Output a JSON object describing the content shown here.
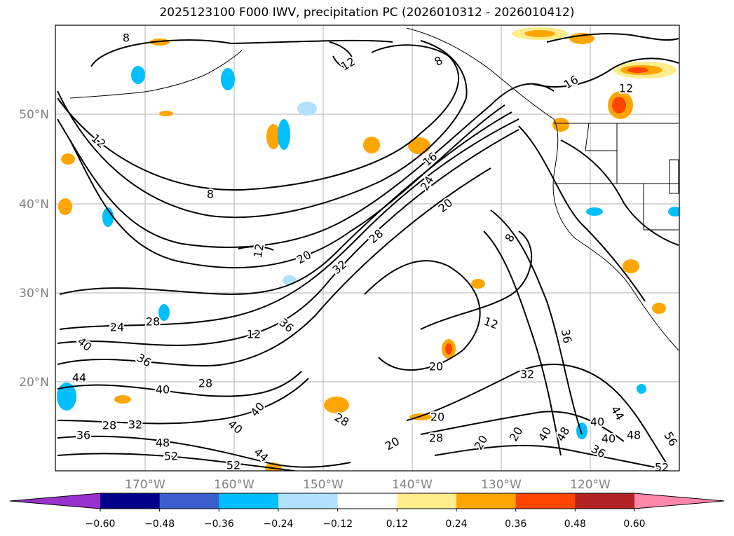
{
  "title": "2025123100 F000 IWV, precipitation PC (2026010312 - 2026010412)",
  "lat_labels": [
    "50°N",
    "40°N",
    "30°N",
    "20°N"
  ],
  "lon_labels": [
    "170°W",
    "160°W",
    "150°W",
    "140°W",
    "130°W",
    "120°W"
  ],
  "colorbar": {
    "colors": [
      "#9932CC",
      "#00008B",
      "#3A5FCD",
      "#00BFFF",
      "#B0E2FF",
      "#FFFFFF",
      "#FFEC8B",
      "#FFA500",
      "#FF4500",
      "#B22222",
      "#FF88AA"
    ],
    "tick_labels": [
      "−0.60",
      "−0.48",
      "−0.36",
      "−0.24",
      "−0.12",
      "0.12",
      "0.24",
      "0.36",
      "0.48",
      "0.60"
    ]
  },
  "contour_labels": [
    "8",
    "12",
    "8",
    "16",
    "12",
    "8",
    "12",
    "12",
    "16",
    "24",
    "20",
    "12",
    "28",
    "20",
    "32",
    "20",
    "36",
    "12",
    "24",
    "28",
    "40",
    "36",
    "28",
    "8",
    "32",
    "40",
    "44",
    "40",
    "28",
    "28",
    "32",
    "36",
    "20",
    "40",
    "20",
    "48",
    "52",
    "28",
    "20",
    "20",
    "40",
    "44",
    "36",
    "48",
    "40",
    "40",
    "48",
    "56",
    "36",
    "52",
    "52",
    "44"
  ]
}
